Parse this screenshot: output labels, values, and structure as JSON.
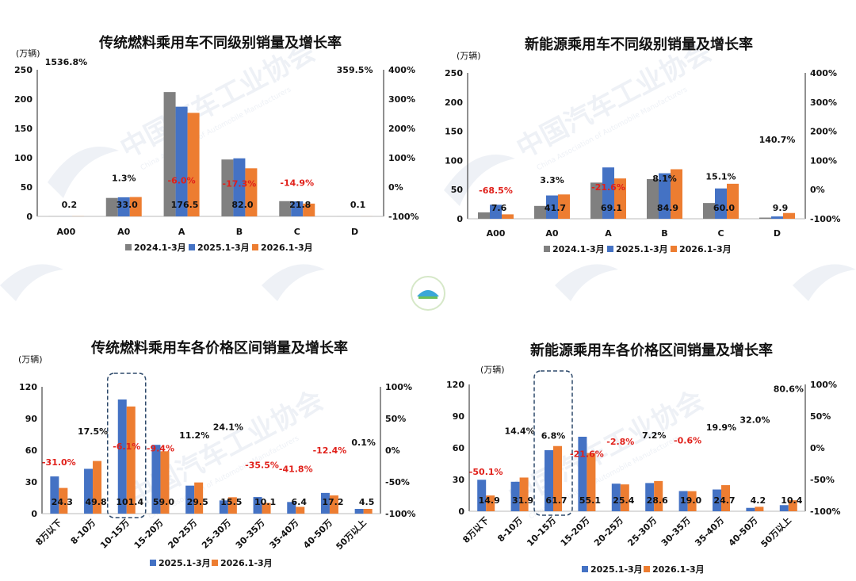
{
  "colors": {
    "s2024": "#808080",
    "s2025": "#4472C4",
    "s2026": "#ED7D31",
    "neg": "#E0201A",
    "pos": "#111111",
    "highlight": "#2E4A6B"
  },
  "watermark": {
    "cn": "中国汽车工业协会",
    "en": "China Association of Automobile Manufacturers"
  },
  "chart_data": [
    {
      "type": "bar",
      "title": "传统燃料乘用车不同级别销量及增长率",
      "ylabel": "(万辆)",
      "ylim": [
        0,
        250
      ],
      "yticks": [
        0,
        50,
        100,
        150,
        200,
        250
      ],
      "y2lim": [
        -100,
        400
      ],
      "y2ticks": [
        "-100%",
        "0%",
        "100%",
        "200%",
        "300%",
        "400%"
      ],
      "categories": [
        "A00",
        "A0",
        "A",
        "B",
        "C",
        "D"
      ],
      "series": [
        {
          "name": "2024.1-3月",
          "values": [
            0.1,
            31.5,
            212,
            97,
            26,
            0.05
          ]
        },
        {
          "name": "2025.1-3月",
          "values": [
            0.1,
            32.6,
            187,
            99,
            25.6,
            0.05
          ]
        },
        {
          "name": "2026.1-3月",
          "values": [
            0.2,
            33.0,
            176.5,
            82.0,
            21.8,
            0.1
          ]
        }
      ],
      "value_labels": [
        "0.2",
        "33.0",
        "176.5",
        "82.0",
        "21.8",
        "0.1"
      ],
      "growth_labels": [
        "1536.8%",
        "1.3%",
        "-6.0%",
        "-17.3%",
        "-14.9%",
        "359.5%"
      ],
      "growth_values": [
        1536.8,
        1.3,
        -6.0,
        -17.3,
        -14.9,
        359.5
      ],
      "legend": [
        "2024.1-3月",
        "2025.1-3月",
        "2026.1-3月"
      ]
    },
    {
      "type": "bar",
      "title": "新能源乘用车不同级别销量及增长率",
      "ylabel": "(万辆)",
      "ylim": [
        0,
        250
      ],
      "yticks": [
        0,
        50,
        100,
        150,
        200,
        250
      ],
      "y2lim": [
        -100,
        400
      ],
      "y2ticks": [
        "-100%",
        "0%",
        "100%",
        "200%",
        "300%",
        "400%"
      ],
      "categories": [
        "A00",
        "A0",
        "A",
        "B",
        "C",
        "D"
      ],
      "series": [
        {
          "name": "2024.1-3月",
          "values": [
            11,
            22,
            62,
            68,
            27,
            2
          ]
        },
        {
          "name": "2025.1-3月",
          "values": [
            24,
            40,
            88,
            78,
            52,
            4
          ]
        },
        {
          "name": "2026.1-3月",
          "values": [
            7.6,
            41.7,
            69.1,
            84.9,
            60.0,
            9.9
          ]
        }
      ],
      "value_labels": [
        "7.6",
        "41.7",
        "69.1",
        "84.9",
        "60.0",
        "9.9"
      ],
      "growth_labels": [
        "-68.5%",
        "3.3%",
        "-21.6%",
        "8.1%",
        "15.1%",
        "140.7%"
      ],
      "growth_values": [
        -68.5,
        3.3,
        -21.6,
        8.1,
        15.1,
        140.7
      ],
      "legend": [
        "2024.1-3月",
        "2025.1-3月",
        "2026.1-3月"
      ]
    },
    {
      "type": "bar",
      "title": "传统燃料乘用车各价格区间销量及增长率",
      "ylabel": "(万辆)",
      "ylim": [
        0,
        120
      ],
      "yticks": [
        0,
        30,
        60,
        90,
        120
      ],
      "y2lim": [
        -100,
        100
      ],
      "y2ticks": [
        "-100%",
        "-50%",
        "0%",
        "50%",
        "100%"
      ],
      "categories": [
        "8万以下",
        "8-10万",
        "10-15万",
        "15-20万",
        "20-25万",
        "25-30万",
        "30-35万",
        "35-40万",
        "40-50万",
        "50万以上"
      ],
      "series": [
        {
          "name": "2025.1-3月",
          "values": [
            35.2,
            42.4,
            108.0,
            65.1,
            26.5,
            12.5,
            15.7,
            11.0,
            19.6,
            4.5
          ]
        },
        {
          "name": "2026.1-3月",
          "values": [
            24.3,
            49.8,
            101.4,
            59.0,
            29.5,
            15.5,
            10.1,
            6.4,
            17.2,
            4.5
          ]
        }
      ],
      "value_labels": [
        "24.3",
        "49.8",
        "101.4",
        "59.0",
        "29.5",
        "15.5",
        "10.1",
        "6.4",
        "17.2",
        "4.5"
      ],
      "growth_labels": [
        "-31.0%",
        "17.5%",
        "-6.1%",
        "-9.4%",
        "11.2%",
        "24.1%",
        "-35.5%",
        "-41.8%",
        "-12.4%",
        "0.1%"
      ],
      "growth_values": [
        -31.0,
        17.5,
        -6.1,
        -9.4,
        11.2,
        24.1,
        -35.5,
        -41.8,
        -12.4,
        0.1
      ],
      "legend": [
        "2025.1-3月",
        "2026.1-3月"
      ]
    },
    {
      "type": "bar",
      "title": "新能源乘用车各价格区间销量及增长率",
      "ylabel": "(万辆)",
      "ylim": [
        0,
        120
      ],
      "yticks": [
        0,
        30,
        60,
        90,
        120
      ],
      "y2lim": [
        -100,
        100
      ],
      "y2ticks": [
        "-100%",
        "-50%",
        "0%",
        "50%",
        "100%"
      ],
      "categories": [
        "8万以下",
        "8-10万",
        "10-15万",
        "15-20万",
        "20-25万",
        "25-30万",
        "30-35万",
        "35-40万",
        "40-50万",
        "50万以上"
      ],
      "series": [
        {
          "name": "2025.1-3月",
          "values": [
            29.8,
            27.9,
            57.8,
            70.5,
            26.1,
            26.7,
            19.1,
            20.6,
            3.2,
            5.8
          ]
        },
        {
          "name": "2026.1-3月",
          "values": [
            14.9,
            31.9,
            61.7,
            55.1,
            25.4,
            28.6,
            19.0,
            24.7,
            4.2,
            10.4
          ]
        }
      ],
      "value_labels": [
        "14.9",
        "31.9",
        "61.7",
        "55.1",
        "25.4",
        "28.6",
        "19.0",
        "24.7",
        "4.2",
        "10.4"
      ],
      "growth_labels": [
        "-50.1%",
        "14.4%",
        "6.8%",
        "-21.6%",
        "-2.8%",
        "7.2%",
        "-0.6%",
        "19.9%",
        "32.0%",
        "80.6%"
      ],
      "growth_values": [
        -50.1,
        14.4,
        6.8,
        -21.6,
        -2.8,
        7.2,
        -0.6,
        19.9,
        32.0,
        80.6
      ],
      "legend": [
        "2025.1-3月",
        "2026.1-3月"
      ]
    }
  ]
}
